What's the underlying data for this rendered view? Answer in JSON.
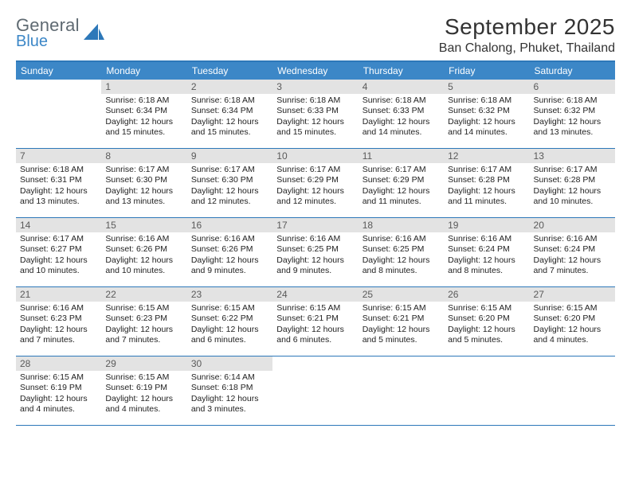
{
  "logo": {
    "word1": "General",
    "word2": "Blue",
    "shape_color": "#2d78b9"
  },
  "header": {
    "month_title": "September 2025",
    "location": "Ban Chalong, Phuket, Thailand"
  },
  "colors": {
    "header_bar": "#3c87c7",
    "border": "#2d78b9",
    "daynum_bg": "#e3e3e3",
    "text": "#222222",
    "logo_gray": "#5f6a72",
    "logo_blue": "#3c87c7"
  },
  "days_of_week": [
    "Sunday",
    "Monday",
    "Tuesday",
    "Wednesday",
    "Thursday",
    "Friday",
    "Saturday"
  ],
  "weeks": [
    [
      {
        "n": "",
        "empty": true
      },
      {
        "n": "1",
        "sr": "6:18 AM",
        "ss": "6:34 PM",
        "dl": "12 hours and 15 minutes."
      },
      {
        "n": "2",
        "sr": "6:18 AM",
        "ss": "6:34 PM",
        "dl": "12 hours and 15 minutes."
      },
      {
        "n": "3",
        "sr": "6:18 AM",
        "ss": "6:33 PM",
        "dl": "12 hours and 15 minutes."
      },
      {
        "n": "4",
        "sr": "6:18 AM",
        "ss": "6:33 PM",
        "dl": "12 hours and 14 minutes."
      },
      {
        "n": "5",
        "sr": "6:18 AM",
        "ss": "6:32 PM",
        "dl": "12 hours and 14 minutes."
      },
      {
        "n": "6",
        "sr": "6:18 AM",
        "ss": "6:32 PM",
        "dl": "12 hours and 13 minutes."
      }
    ],
    [
      {
        "n": "7",
        "sr": "6:18 AM",
        "ss": "6:31 PM",
        "dl": "12 hours and 13 minutes."
      },
      {
        "n": "8",
        "sr": "6:17 AM",
        "ss": "6:30 PM",
        "dl": "12 hours and 13 minutes."
      },
      {
        "n": "9",
        "sr": "6:17 AM",
        "ss": "6:30 PM",
        "dl": "12 hours and 12 minutes."
      },
      {
        "n": "10",
        "sr": "6:17 AM",
        "ss": "6:29 PM",
        "dl": "12 hours and 12 minutes."
      },
      {
        "n": "11",
        "sr": "6:17 AM",
        "ss": "6:29 PM",
        "dl": "12 hours and 11 minutes."
      },
      {
        "n": "12",
        "sr": "6:17 AM",
        "ss": "6:28 PM",
        "dl": "12 hours and 11 minutes."
      },
      {
        "n": "13",
        "sr": "6:17 AM",
        "ss": "6:28 PM",
        "dl": "12 hours and 10 minutes."
      }
    ],
    [
      {
        "n": "14",
        "sr": "6:17 AM",
        "ss": "6:27 PM",
        "dl": "12 hours and 10 minutes."
      },
      {
        "n": "15",
        "sr": "6:16 AM",
        "ss": "6:26 PM",
        "dl": "12 hours and 10 minutes."
      },
      {
        "n": "16",
        "sr": "6:16 AM",
        "ss": "6:26 PM",
        "dl": "12 hours and 9 minutes."
      },
      {
        "n": "17",
        "sr": "6:16 AM",
        "ss": "6:25 PM",
        "dl": "12 hours and 9 minutes."
      },
      {
        "n": "18",
        "sr": "6:16 AM",
        "ss": "6:25 PM",
        "dl": "12 hours and 8 minutes."
      },
      {
        "n": "19",
        "sr": "6:16 AM",
        "ss": "6:24 PM",
        "dl": "12 hours and 8 minutes."
      },
      {
        "n": "20",
        "sr": "6:16 AM",
        "ss": "6:24 PM",
        "dl": "12 hours and 7 minutes."
      }
    ],
    [
      {
        "n": "21",
        "sr": "6:16 AM",
        "ss": "6:23 PM",
        "dl": "12 hours and 7 minutes."
      },
      {
        "n": "22",
        "sr": "6:15 AM",
        "ss": "6:23 PM",
        "dl": "12 hours and 7 minutes."
      },
      {
        "n": "23",
        "sr": "6:15 AM",
        "ss": "6:22 PM",
        "dl": "12 hours and 6 minutes."
      },
      {
        "n": "24",
        "sr": "6:15 AM",
        "ss": "6:21 PM",
        "dl": "12 hours and 6 minutes."
      },
      {
        "n": "25",
        "sr": "6:15 AM",
        "ss": "6:21 PM",
        "dl": "12 hours and 5 minutes."
      },
      {
        "n": "26",
        "sr": "6:15 AM",
        "ss": "6:20 PM",
        "dl": "12 hours and 5 minutes."
      },
      {
        "n": "27",
        "sr": "6:15 AM",
        "ss": "6:20 PM",
        "dl": "12 hours and 4 minutes."
      }
    ],
    [
      {
        "n": "28",
        "sr": "6:15 AM",
        "ss": "6:19 PM",
        "dl": "12 hours and 4 minutes."
      },
      {
        "n": "29",
        "sr": "6:15 AM",
        "ss": "6:19 PM",
        "dl": "12 hours and 4 minutes."
      },
      {
        "n": "30",
        "sr": "6:14 AM",
        "ss": "6:18 PM",
        "dl": "12 hours and 3 minutes."
      },
      {
        "n": "",
        "empty": true
      },
      {
        "n": "",
        "empty": true
      },
      {
        "n": "",
        "empty": true
      },
      {
        "n": "",
        "empty": true
      }
    ]
  ],
  "labels": {
    "sunrise_prefix": "Sunrise: ",
    "sunset_prefix": "Sunset: ",
    "daylight_prefix": "Daylight: "
  }
}
